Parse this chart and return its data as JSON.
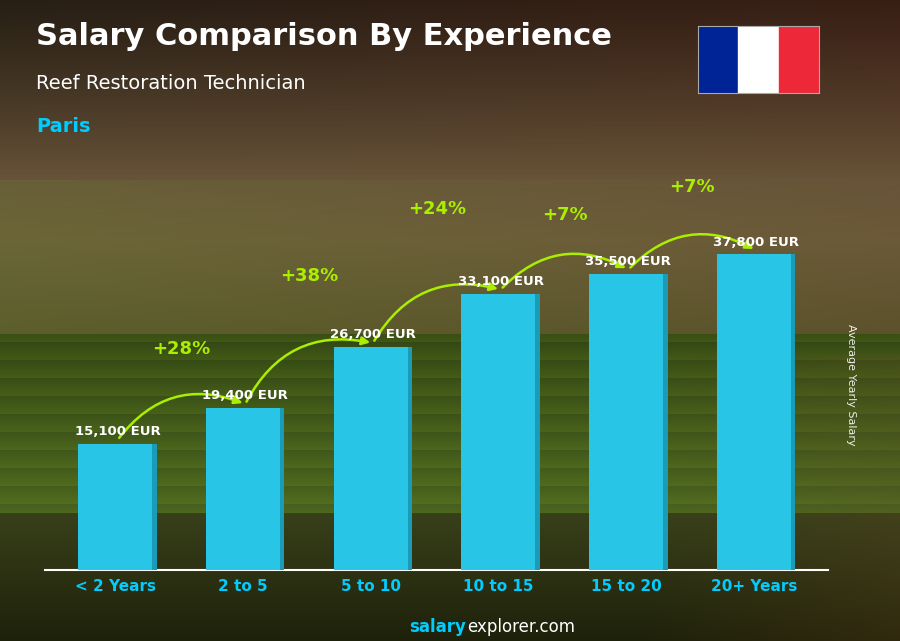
{
  "title": "Salary Comparison By Experience",
  "subtitle": "Reef Restoration Technician",
  "city": "Paris",
  "ylabel": "Average Yearly Salary",
  "categories": [
    "< 2 Years",
    "2 to 5",
    "5 to 10",
    "10 to 15",
    "15 to 20",
    "20+ Years"
  ],
  "values": [
    15100,
    19400,
    26700,
    33100,
    35500,
    37800
  ],
  "labels": [
    "15,100 EUR",
    "19,400 EUR",
    "26,700 EUR",
    "33,100 EUR",
    "35,500 EUR",
    "37,800 EUR"
  ],
  "pct_changes": [
    "+28%",
    "+38%",
    "+24%",
    "+7%",
    "+7%"
  ],
  "bar_color": "#29C5E6",
  "bar_color_right": "#1A9BB8",
  "bar_color_top": "#4DD8F0",
  "pct_color": "#AAEE00",
  "title_color": "#FFFFFF",
  "subtitle_color": "#FFFFFF",
  "city_color": "#00CCFF",
  "label_color": "#FFFFFF",
  "xtick_color": "#00CCFF",
  "flag_colors": [
    "#002395",
    "#FFFFFF",
    "#ED2939"
  ],
  "ylim": [
    0,
    46000
  ],
  "bar_width": 0.58
}
